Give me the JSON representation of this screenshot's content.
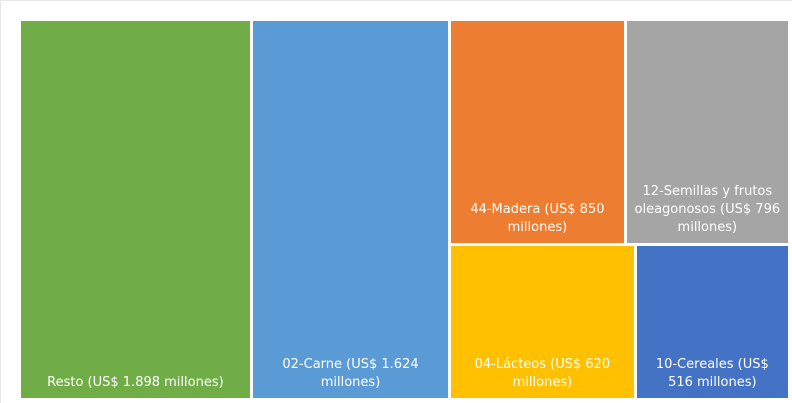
{
  "chart_data": {
    "type": "treemap",
    "categories": [
      "Resto  (US$ 1.898 millones)",
      "02-Carne (US$ 1.624 millones)",
      "44-Madera (US$ 850 millones)",
      "12-Semillas y frutos oleagonosos (US$ 796 millones)",
      "04-Lácteos (US$ 620 millones)",
      "10-Cereales (US$ 516 millones)"
    ],
    "values": [
      1898,
      1624,
      850,
      796,
      620,
      516
    ],
    "colors": [
      "#70ad47",
      "#5b9bd5",
      "#ed7d31",
      "#a5a5a5",
      "#ffc000",
      "#4472c4"
    ]
  }
}
